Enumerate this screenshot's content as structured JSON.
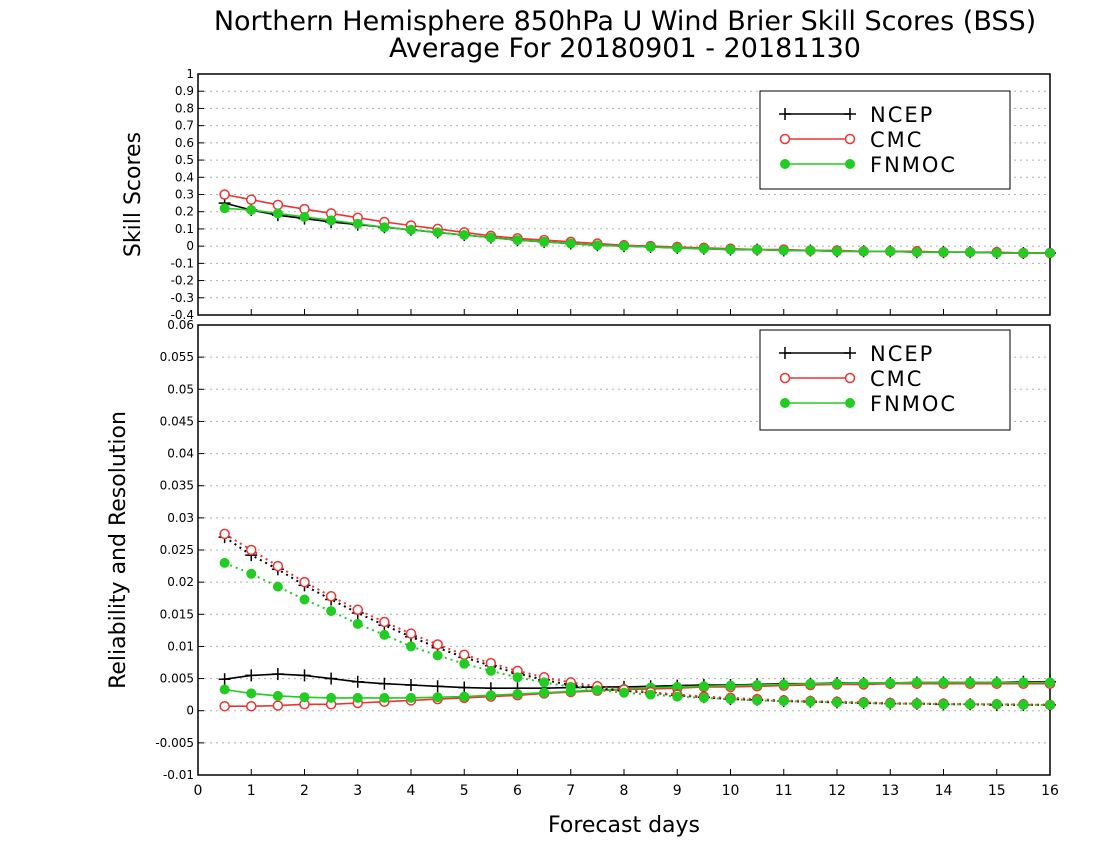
{
  "title_line1": "Northern Hemisphere 850hPa U Wind Brier Skill Scores (BSS)",
  "title_line2": "Average For 20180901 - 20181130",
  "colors": {
    "NCEP": "#000000",
    "CMC": "#ee3333",
    "FNMOC": "#22cc22"
  },
  "chart_data": [
    {
      "type": "line",
      "ylabel": "Skill Scores",
      "xlim": [
        0,
        16
      ],
      "ylim": [
        -0.4,
        1
      ],
      "y_ticks": [
        "-0.4",
        "-0.3",
        "-0.2",
        "-0.1",
        "0",
        "0.1",
        "0.2",
        "0.3",
        "0.4",
        "0.5",
        "0.6",
        "0.7",
        "0.8",
        "0.9",
        "1"
      ],
      "grid": true,
      "legend": "top-right",
      "x": [
        0.5,
        1,
        1.5,
        2,
        2.5,
        3,
        3.5,
        4,
        4.5,
        5,
        5.5,
        6,
        6.5,
        7,
        7.5,
        8,
        8.5,
        9,
        9.5,
        10,
        10.5,
        11,
        11.5,
        12,
        12.5,
        13,
        13.5,
        14,
        14.5,
        15,
        15.5,
        16
      ],
      "series": [
        {
          "name": "NCEP",
          "marker": "plus",
          "style": "solid",
          "values": [
            0.25,
            0.21,
            0.18,
            0.16,
            0.14,
            0.125,
            0.11,
            0.095,
            0.08,
            0.065,
            0.05,
            0.035,
            0.025,
            0.015,
            0.005,
            0.0,
            -0.005,
            -0.01,
            -0.015,
            -0.02,
            -0.02,
            -0.025,
            -0.025,
            -0.03,
            -0.03,
            -0.03,
            -0.035,
            -0.035,
            -0.035,
            -0.04,
            -0.04,
            -0.04
          ]
        },
        {
          "name": "CMC",
          "marker": "open-circle",
          "style": "solid",
          "values": [
            0.3,
            0.27,
            0.24,
            0.215,
            0.19,
            0.165,
            0.14,
            0.12,
            0.1,
            0.08,
            0.06,
            0.045,
            0.035,
            0.025,
            0.015,
            0.005,
            0.0,
            -0.005,
            -0.01,
            -0.015,
            -0.02,
            -0.02,
            -0.025,
            -0.025,
            -0.03,
            -0.03,
            -0.03,
            -0.035,
            -0.035,
            -0.035,
            -0.04,
            -0.04
          ]
        },
        {
          "name": "FNMOC",
          "marker": "filled-circle",
          "style": "solid",
          "values": [
            0.22,
            0.21,
            0.19,
            0.17,
            0.15,
            0.13,
            0.11,
            0.095,
            0.08,
            0.065,
            0.05,
            0.035,
            0.025,
            0.015,
            0.005,
            0.0,
            -0.005,
            -0.01,
            -0.015,
            -0.02,
            -0.02,
            -0.025,
            -0.025,
            -0.03,
            -0.03,
            -0.03,
            -0.035,
            -0.035,
            -0.035,
            -0.04,
            -0.04,
            -0.04
          ]
        }
      ]
    },
    {
      "type": "line",
      "ylabel": "Reliability and Resolution",
      "xlabel": "Forecast days",
      "xlim": [
        0,
        16
      ],
      "ylim": [
        -0.01,
        0.06
      ],
      "x_ticks": [
        "0",
        "1",
        "2",
        "3",
        "4",
        "5",
        "6",
        "7",
        "8",
        "9",
        "10",
        "11",
        "12",
        "13",
        "14",
        "15",
        "16"
      ],
      "y_ticks": [
        "-0.01",
        "-0.005",
        "0",
        "0.005",
        "0.01",
        "0.015",
        "0.02",
        "0.025",
        "0.03",
        "0.035",
        "0.04",
        "0.045",
        "0.05",
        "0.055",
        "0.06"
      ],
      "grid": true,
      "legend": "top-right",
      "x": [
        0.5,
        1,
        1.5,
        2,
        2.5,
        3,
        3.5,
        4,
        4.5,
        5,
        5.5,
        6,
        6.5,
        7,
        7.5,
        8,
        8.5,
        9,
        9.5,
        10,
        10.5,
        11,
        11.5,
        12,
        12.5,
        13,
        13.5,
        14,
        14.5,
        15,
        15.5,
        16
      ],
      "series": [
        {
          "name": "NCEP",
          "group": "reliability",
          "marker": "plus",
          "style": "solid",
          "values": [
            0.0049,
            0.0055,
            0.0057,
            0.0055,
            0.005,
            0.0045,
            0.0042,
            0.004,
            0.0038,
            0.0036,
            0.0035,
            0.0035,
            0.0035,
            0.0036,
            0.0037,
            0.0037,
            0.0038,
            0.0039,
            0.004,
            0.004,
            0.0041,
            0.0042,
            0.0042,
            0.0043,
            0.0043,
            0.0043,
            0.0044,
            0.0044,
            0.0044,
            0.0044,
            0.0045,
            0.0045
          ]
        },
        {
          "name": "CMC",
          "group": "reliability",
          "marker": "open-circle",
          "style": "solid",
          "values": [
            0.0007,
            0.0007,
            0.0008,
            0.001,
            0.001,
            0.0012,
            0.0014,
            0.0016,
            0.0018,
            0.002,
            0.0022,
            0.0024,
            0.0027,
            0.0029,
            0.0031,
            0.0033,
            0.0034,
            0.0035,
            0.0037,
            0.0037,
            0.0038,
            0.0039,
            0.004,
            0.0041,
            0.0041,
            0.0042,
            0.0042,
            0.0042,
            0.0042,
            0.0042,
            0.0042,
            0.0042
          ]
        },
        {
          "name": "FNMOC",
          "group": "reliability",
          "marker": "filled-circle",
          "style": "solid",
          "values": [
            0.0033,
            0.0027,
            0.0023,
            0.0021,
            0.002,
            0.002,
            0.002,
            0.002,
            0.0021,
            0.0022,
            0.0024,
            0.0026,
            0.0028,
            0.003,
            0.0032,
            0.0034,
            0.0036,
            0.0037,
            0.0038,
            0.0039,
            0.004,
            0.0041,
            0.0042,
            0.0042,
            0.0043,
            0.0043,
            0.0044,
            0.0044,
            0.0044,
            0.0044,
            0.0044,
            0.0044
          ]
        },
        {
          "name": "NCEP",
          "group": "resolution",
          "marker": "plus",
          "style": "dotted",
          "values": [
            0.027,
            0.0242,
            0.022,
            0.0195,
            0.0173,
            0.0152,
            0.0133,
            0.0115,
            0.0098,
            0.0083,
            0.007,
            0.0058,
            0.0048,
            0.004,
            0.0035,
            0.0031,
            0.0028,
            0.0024,
            0.0021,
            0.0018,
            0.0017,
            0.0015,
            0.0014,
            0.0013,
            0.0012,
            0.0011,
            0.0011,
            0.001,
            0.001,
            0.0009,
            0.0009,
            0.0009
          ]
        },
        {
          "name": "CMC",
          "group": "resolution",
          "marker": "open-circle",
          "style": "dotted",
          "values": [
            0.0275,
            0.025,
            0.0225,
            0.02,
            0.0178,
            0.0157,
            0.0138,
            0.012,
            0.0103,
            0.0087,
            0.0074,
            0.0062,
            0.0052,
            0.0044,
            0.0038,
            0.0033,
            0.0029,
            0.0025,
            0.0022,
            0.002,
            0.0018,
            0.0016,
            0.0015,
            0.0014,
            0.0013,
            0.0012,
            0.0011,
            0.0011,
            0.001,
            0.001,
            0.001,
            0.0009
          ]
        },
        {
          "name": "FNMOC",
          "group": "resolution",
          "marker": "filled-circle",
          "style": "dotted",
          "values": [
            0.023,
            0.0213,
            0.0193,
            0.0173,
            0.0155,
            0.0135,
            0.0118,
            0.01,
            0.0086,
            0.0073,
            0.0062,
            0.0052,
            0.0044,
            0.0037,
            0.0032,
            0.0028,
            0.0025,
            0.0022,
            0.002,
            0.0018,
            0.0016,
            0.0015,
            0.0014,
            0.0013,
            0.0012,
            0.0011,
            0.0011,
            0.001,
            0.001,
            0.001,
            0.0009,
            0.0009
          ]
        }
      ]
    }
  ]
}
